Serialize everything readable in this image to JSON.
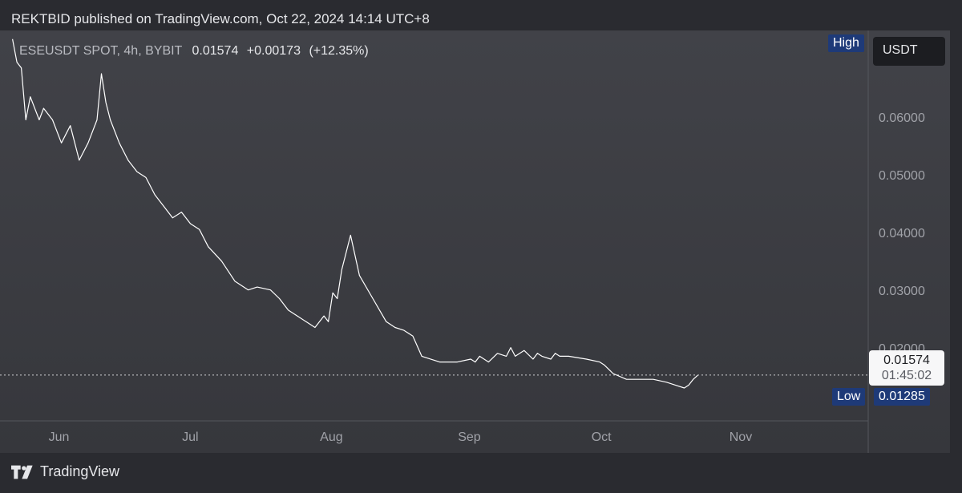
{
  "header": {
    "published": "REKTBID published on TradingView.com, Oct 22, 2024 14:14 UTC+8"
  },
  "legend": {
    "symbol": "ESEUSDT SPOT, 4h, BYBIT",
    "last": "0.01574",
    "change": "+0.00173",
    "change_pct": "(+12.35%)"
  },
  "currency": "USDT",
  "high_tag": "High",
  "low_tag": "Low",
  "low_value": "0.01285",
  "price_label": {
    "price": "0.01574",
    "countdown": "01:45:02"
  },
  "footer": {
    "brand": "TradingView"
  },
  "colors": {
    "line": "#ffffff",
    "tag": "#1e3a78",
    "background": "#2a2b30"
  },
  "chart_data": {
    "type": "line",
    "title": "ESEUSDT SPOT, 4h, BYBIT",
    "ylabel": "USDT",
    "ylim": [
      0.0078,
      0.0755
    ],
    "y_ticks": [
      "0.06000",
      "0.05000",
      "0.04000",
      "0.03000",
      "0.02000"
    ],
    "x_ticks": [
      "Jun",
      "Jul",
      "Aug",
      "Sep",
      "Oct",
      "Nov"
    ],
    "x": [
      "2024-05-21",
      "2024-05-22",
      "2024-05-23",
      "2024-05-24",
      "2024-05-25",
      "2024-05-27",
      "2024-05-28",
      "2024-05-30",
      "2024-06-01",
      "2024-06-03",
      "2024-06-05",
      "2024-06-07",
      "2024-06-09",
      "2024-06-10",
      "2024-06-11",
      "2024-06-12",
      "2024-06-14",
      "2024-06-16",
      "2024-06-18",
      "2024-06-20",
      "2024-06-22",
      "2024-06-24",
      "2024-06-26",
      "2024-06-28",
      "2024-06-30",
      "2024-07-02",
      "2024-07-04",
      "2024-07-07",
      "2024-07-10",
      "2024-07-13",
      "2024-07-15",
      "2024-07-18",
      "2024-07-20",
      "2024-07-22",
      "2024-07-24",
      "2024-07-26",
      "2024-07-28",
      "2024-07-30",
      "2024-07-31",
      "2024-08-01",
      "2024-08-02",
      "2024-08-03",
      "2024-08-05",
      "2024-08-07",
      "2024-08-10",
      "2024-08-13",
      "2024-08-15",
      "2024-08-17",
      "2024-08-19",
      "2024-08-21",
      "2024-08-25",
      "2024-08-29",
      "2024-09-01",
      "2024-09-02",
      "2024-09-03",
      "2024-09-05",
      "2024-09-07",
      "2024-09-09",
      "2024-09-10",
      "2024-09-11",
      "2024-09-13",
      "2024-09-15",
      "2024-09-16",
      "2024-09-17",
      "2024-09-19",
      "2024-09-20",
      "2024-09-21",
      "2024-09-23",
      "2024-09-27",
      "2024-09-30",
      "2024-10-01",
      "2024-10-03",
      "2024-10-06",
      "2024-10-09",
      "2024-10-12",
      "2024-10-15",
      "2024-10-17",
      "2024-10-19",
      "2024-10-20",
      "2024-10-21",
      "2024-10-22"
    ],
    "series": [
      {
        "values": [
          0.074,
          0.07,
          0.069,
          0.06,
          0.064,
          0.06,
          0.062,
          0.06,
          0.056,
          0.059,
          0.053,
          0.056,
          0.06,
          0.068,
          0.063,
          0.06,
          0.056,
          0.053,
          0.051,
          0.05,
          0.047,
          0.045,
          0.043,
          0.044,
          0.042,
          0.041,
          0.038,
          0.0355,
          0.032,
          0.0305,
          0.031,
          0.0305,
          0.029,
          0.027,
          0.026,
          0.025,
          0.024,
          0.026,
          0.025,
          0.03,
          0.029,
          0.034,
          0.04,
          0.033,
          0.029,
          0.025,
          0.024,
          0.0235,
          0.0225,
          0.019,
          0.018,
          0.018,
          0.0185,
          0.018,
          0.019,
          0.018,
          0.0195,
          0.019,
          0.0205,
          0.019,
          0.02,
          0.0185,
          0.0195,
          0.019,
          0.0185,
          0.0195,
          0.019,
          0.019,
          0.0185,
          0.018,
          0.0175,
          0.016,
          0.015,
          0.015,
          0.015,
          0.0145,
          0.014,
          0.0135,
          0.014,
          0.015,
          0.0157
        ]
      }
    ]
  }
}
